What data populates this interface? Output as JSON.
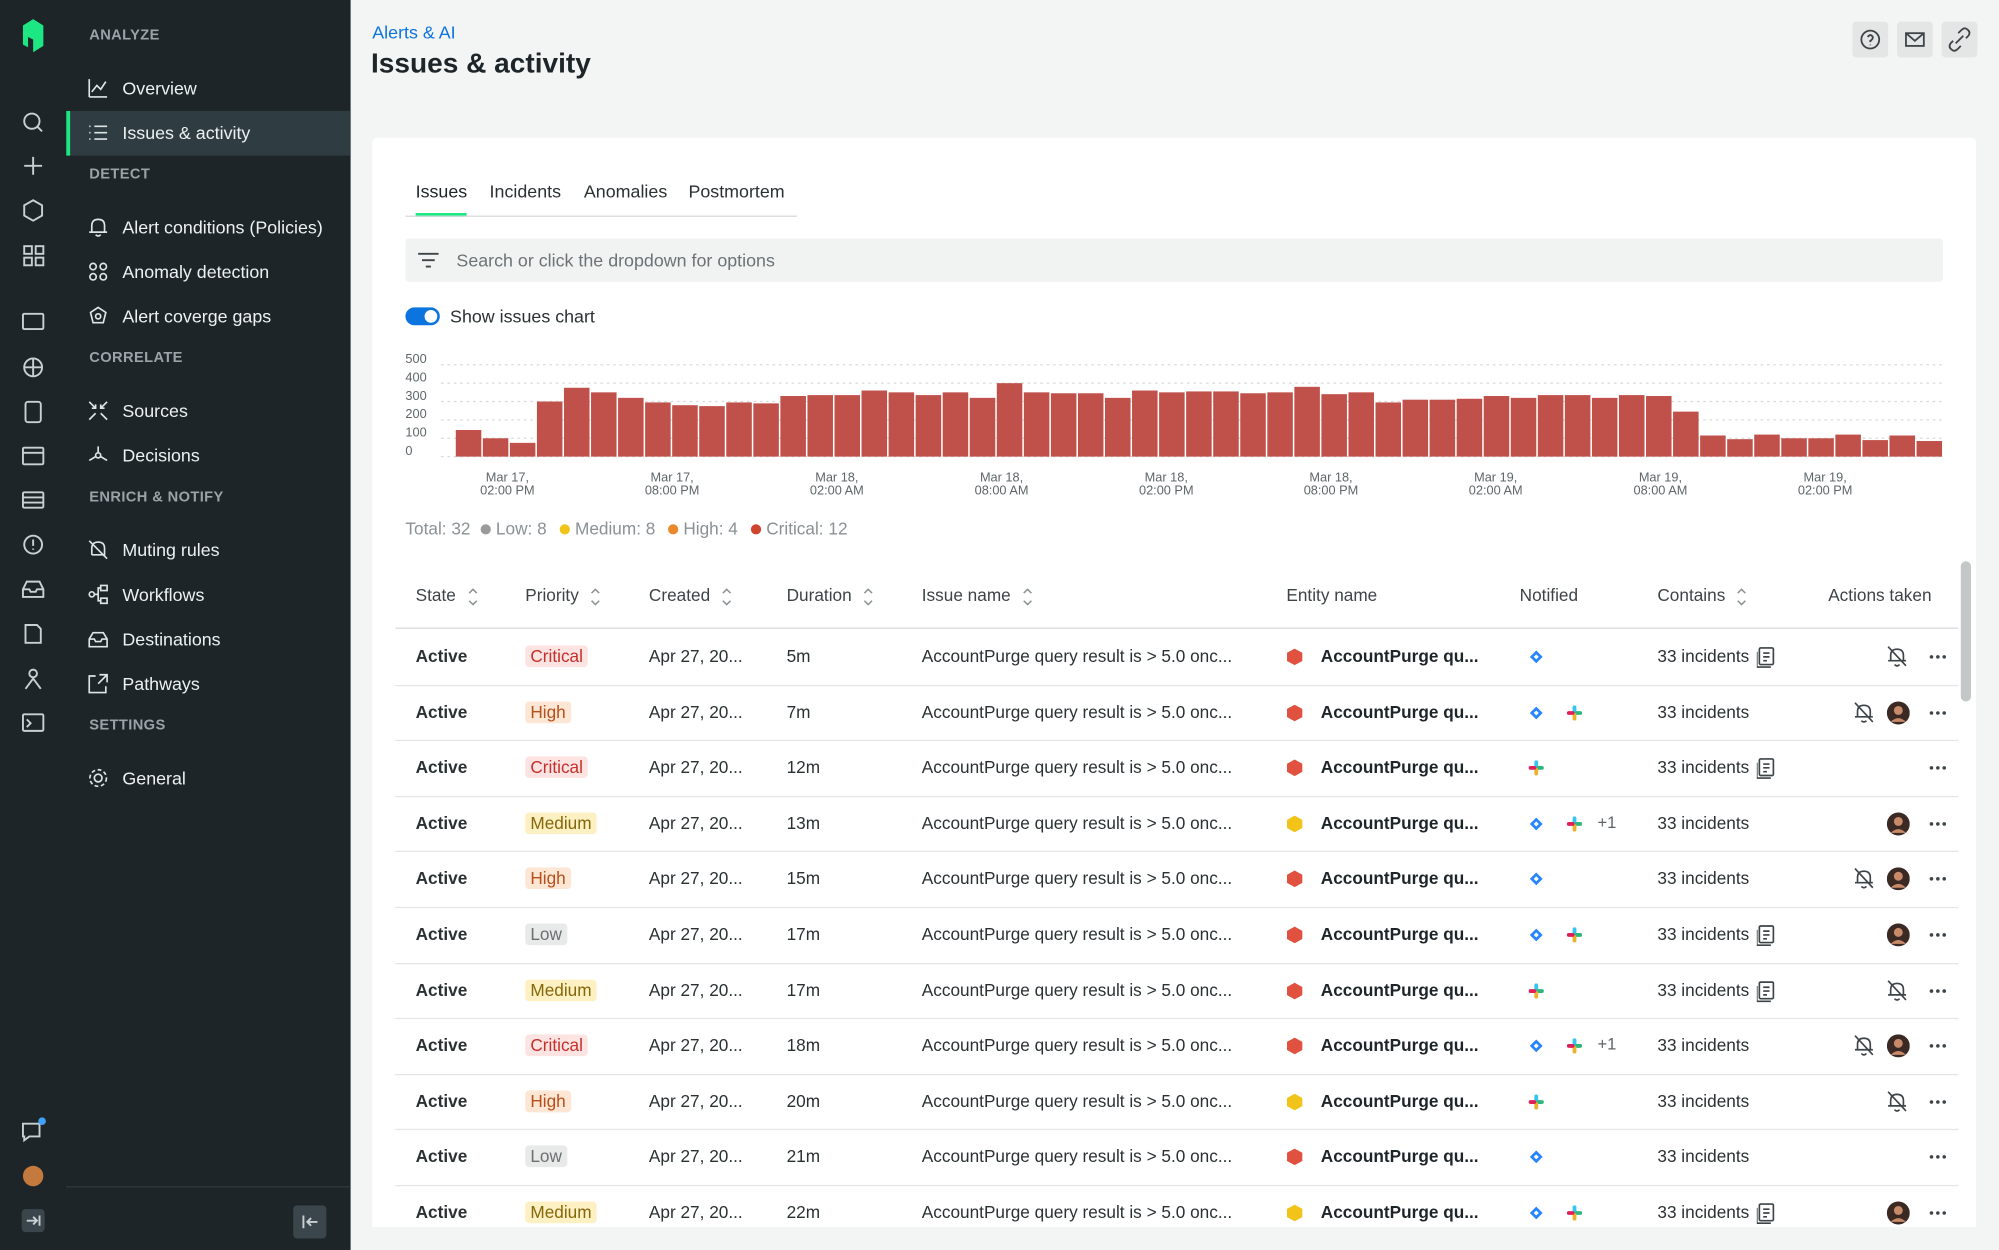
{
  "breadcrumb": "Alerts & AI",
  "title": "Issues & activity",
  "nav": [
    {
      "heading": "ANALYZE",
      "items": [
        {
          "label": "Overview"
        },
        {
          "label": "Issues & activity",
          "active": true
        }
      ]
    },
    {
      "heading": "DETECT",
      "items": [
        {
          "label": "Alert conditions (Policies)"
        },
        {
          "label": "Anomaly detection"
        },
        {
          "label": "Alert coverge gaps"
        }
      ]
    },
    {
      "heading": "CORRELATE",
      "items": [
        {
          "label": "Sources"
        },
        {
          "label": "Decisions"
        }
      ]
    },
    {
      "heading": "ENRICH & NOTIFY",
      "items": [
        {
          "label": "Muting rules"
        },
        {
          "label": "Workflows"
        },
        {
          "label": "Destinations"
        },
        {
          "label": "Pathways"
        }
      ]
    },
    {
      "heading": "SETTINGS",
      "items": [
        {
          "label": "General"
        }
      ]
    }
  ],
  "tabs": [
    {
      "label": "Issues",
      "active": true
    },
    {
      "label": "Incidents"
    },
    {
      "label": "Anomalies"
    },
    {
      "label": "Postmortem"
    }
  ],
  "search_placeholder": "Search or click the dropdown for options",
  "toggle_label": "Show issues chart",
  "issues_chart": {
    "type": "bar",
    "color": "#c0504a",
    "ylim": [
      0,
      500
    ],
    "yticks": [
      0,
      100,
      200,
      300,
      400,
      500
    ],
    "grid": true,
    "values": [
      145,
      100,
      75,
      300,
      375,
      350,
      320,
      295,
      280,
      275,
      295,
      290,
      330,
      335,
      335,
      360,
      350,
      335,
      350,
      320,
      400,
      350,
      345,
      345,
      320,
      360,
      350,
      355,
      355,
      345,
      350,
      380,
      340,
      350,
      295,
      310,
      310,
      315,
      330,
      320,
      335,
      335,
      320,
      335,
      330,
      245,
      115,
      95,
      120,
      100,
      100,
      120,
      90,
      115,
      85
    ],
    "xtick_labels": [
      [
        "Mar 17,",
        "02:00 PM"
      ],
      [
        "Mar 17,",
        "08:00 PM"
      ],
      [
        "Mar 18,",
        "02:00 AM"
      ],
      [
        "Mar 18,",
        "08:00 AM"
      ],
      [
        "Mar 18,",
        "02:00 PM"
      ],
      [
        "Mar 18,",
        "08:00 PM"
      ],
      [
        "Mar 19,",
        "02:00 AM"
      ],
      [
        "Mar 19,",
        "08:00 AM"
      ],
      [
        "Mar 19,",
        "02:00 PM"
      ]
    ]
  },
  "summary": {
    "total": "Total: 32",
    "items": [
      {
        "label": "Low: 8",
        "color": "#9b9b9b"
      },
      {
        "label": "Medium: 8",
        "color": "#f0c419"
      },
      {
        "label": "High: 4",
        "color": "#e8892c"
      },
      {
        "label": "Critical: 12",
        "color": "#d0432f"
      }
    ]
  },
  "table": {
    "columns": [
      {
        "label": "State",
        "sortable": true
      },
      {
        "label": "Priority",
        "sortable": true
      },
      {
        "label": "Created",
        "sortable": true
      },
      {
        "label": "Duration",
        "sortable": true
      },
      {
        "label": "Issue name",
        "sortable": true
      },
      {
        "label": "Entity name"
      },
      {
        "label": "Notified"
      },
      {
        "label": "Contains",
        "sortable": true
      },
      {
        "label": "Actions taken"
      }
    ],
    "priority_styles": {
      "Critical": {
        "bg": "#fde3e1",
        "fg": "#c4302b"
      },
      "High": {
        "bg": "#fde6d4",
        "fg": "#b5501a"
      },
      "Medium": {
        "bg": "#fdf0c2",
        "fg": "#86680a"
      },
      "Low": {
        "bg": "#e8e9e9",
        "fg": "#6b6f72"
      }
    },
    "rows": [
      {
        "state": "Active",
        "priority": "Critical",
        "created": "Apr 27, 20...",
        "duration": "5m",
        "issue": "AccountPurge query result is > 5.0 onc...",
        "entity": "AccountPurge qu...",
        "entity_color": "#e0523f",
        "contains": "33 incidents"
      },
      {
        "state": "Active",
        "priority": "High",
        "created": "Apr 27, 20...",
        "duration": "7m",
        "issue": "AccountPurge query result is > 5.0 onc...",
        "entity": "AccountPurge qu...",
        "entity_color": "#e0523f",
        "contains": "33 incidents"
      },
      {
        "state": "Active",
        "priority": "Critical",
        "created": "Apr 27, 20...",
        "duration": "12m",
        "issue": "AccountPurge query result is > 5.0 onc...",
        "entity": "AccountPurge qu...",
        "entity_color": "#e0523f",
        "contains": "33 incidents"
      },
      {
        "state": "Active",
        "priority": "Medium",
        "created": "Apr 27, 20...",
        "duration": "13m",
        "issue": "AccountPurge query result is > 5.0 onc...",
        "entity": "AccountPurge qu...",
        "entity_color": "#f2c318",
        "notified_more": "+1",
        "contains": "33 incidents"
      },
      {
        "state": "Active",
        "priority": "High",
        "created": "Apr 27, 20...",
        "duration": "15m",
        "issue": "AccountPurge query result is > 5.0 onc...",
        "entity": "AccountPurge qu...",
        "entity_color": "#e0523f",
        "contains": "33 incidents"
      },
      {
        "state": "Active",
        "priority": "Low",
        "created": "Apr 27, 20...",
        "duration": "17m",
        "issue": "AccountPurge query result is > 5.0 onc...",
        "entity": "AccountPurge qu...",
        "entity_color": "#e0523f",
        "contains": "33 incidents"
      },
      {
        "state": "Active",
        "priority": "Medium",
        "created": "Apr 27, 20...",
        "duration": "17m",
        "issue": "AccountPurge query result is > 5.0 onc...",
        "entity": "AccountPurge qu...",
        "entity_color": "#e0523f",
        "contains": "33 incidents"
      },
      {
        "state": "Active",
        "priority": "Critical",
        "created": "Apr 27, 20...",
        "duration": "18m",
        "issue": "AccountPurge query result is > 5.0 onc...",
        "entity": "AccountPurge qu...",
        "entity_color": "#e0523f",
        "notified_more": "+1",
        "contains": "33 incidents"
      },
      {
        "state": "Active",
        "priority": "High",
        "created": "Apr 27, 20...",
        "duration": "20m",
        "issue": "AccountPurge query result is > 5.0 onc...",
        "entity": "AccountPurge qu...",
        "entity_color": "#f2c318",
        "contains": "33 incidents"
      },
      {
        "state": "Active",
        "priority": "Low",
        "created": "Apr 27, 20...",
        "duration": "21m",
        "issue": "AccountPurge query result is > 5.0 onc...",
        "entity": "AccountPurge qu...",
        "entity_color": "#e0523f",
        "contains": "33 incidents"
      },
      {
        "state": "Active",
        "priority": "Medium",
        "created": "Apr 27, 20...",
        "duration": "22m",
        "issue": "AccountPurge query result is > 5.0 onc...",
        "entity": "AccountPurge qu...",
        "entity_color": "#f2c318",
        "contains": "33 incidents"
      }
    ]
  }
}
